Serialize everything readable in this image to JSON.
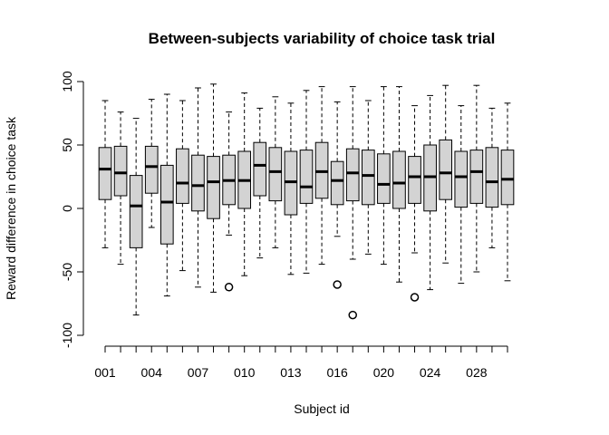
{
  "chart_data": {
    "type": "boxplot",
    "title": "Between-subjects variability of choice task trial",
    "xlabel": "Subject id",
    "ylabel": "Reward difference in choice task",
    "ylim": [
      -100,
      100
    ],
    "yticks": [
      -100,
      -50,
      0,
      50,
      100
    ],
    "x_tick_labels": [
      "001",
      "004",
      "007",
      "010",
      "013",
      "016",
      "020",
      "024",
      "028"
    ],
    "x_tick_label_positions": [
      1,
      4,
      7,
      10,
      13,
      16,
      19,
      22,
      25
    ],
    "box_fill": "#d3d3d3",
    "grid": false,
    "series": [
      {
        "whisker_low": -31,
        "q1": 7,
        "median": 31,
        "q3": 48,
        "whisker_high": 85,
        "outliers": []
      },
      {
        "whisker_low": -44,
        "q1": 10,
        "median": 28,
        "q3": 49,
        "whisker_high": 76,
        "outliers": []
      },
      {
        "whisker_low": -84,
        "q1": -31,
        "median": 2,
        "q3": 26,
        "whisker_high": 71,
        "outliers": []
      },
      {
        "whisker_low": -15,
        "q1": 12,
        "median": 33,
        "q3": 49,
        "whisker_high": 86,
        "outliers": []
      },
      {
        "whisker_low": -69,
        "q1": -28,
        "median": 5,
        "q3": 34,
        "whisker_high": 90,
        "outliers": []
      },
      {
        "whisker_low": -49,
        "q1": 4,
        "median": 20,
        "q3": 47,
        "whisker_high": 85,
        "outliers": []
      },
      {
        "whisker_low": -62,
        "q1": -2,
        "median": 18,
        "q3": 42,
        "whisker_high": 95,
        "outliers": []
      },
      {
        "whisker_low": -66,
        "q1": -8,
        "median": 21,
        "q3": 41,
        "whisker_high": 98,
        "outliers": []
      },
      {
        "whisker_low": -21,
        "q1": 3,
        "median": 22,
        "q3": 42,
        "whisker_high": 76,
        "outliers": [
          -62
        ]
      },
      {
        "whisker_low": -53,
        "q1": 0,
        "median": 22,
        "q3": 45,
        "whisker_high": 91,
        "outliers": []
      },
      {
        "whisker_low": -39,
        "q1": 10,
        "median": 34,
        "q3": 52,
        "whisker_high": 79,
        "outliers": []
      },
      {
        "whisker_low": -31,
        "q1": 6,
        "median": 29,
        "q3": 48,
        "whisker_high": 88,
        "outliers": []
      },
      {
        "whisker_low": -52,
        "q1": -5,
        "median": 21,
        "q3": 45,
        "whisker_high": 83,
        "outliers": []
      },
      {
        "whisker_low": -51,
        "q1": 4,
        "median": 17,
        "q3": 46,
        "whisker_high": 93,
        "outliers": []
      },
      {
        "whisker_low": -44,
        "q1": 8,
        "median": 29,
        "q3": 52,
        "whisker_high": 96,
        "outliers": []
      },
      {
        "whisker_low": -22,
        "q1": 3,
        "median": 22,
        "q3": 37,
        "whisker_high": 84,
        "outliers": [
          -60
        ]
      },
      {
        "whisker_low": -40,
        "q1": 6,
        "median": 28,
        "q3": 47,
        "whisker_high": 96,
        "outliers": [
          -84
        ]
      },
      {
        "whisker_low": -36,
        "q1": 3,
        "median": 26,
        "q3": 46,
        "whisker_high": 85,
        "outliers": []
      },
      {
        "whisker_low": -44,
        "q1": 4,
        "median": 19,
        "q3": 43,
        "whisker_high": 96,
        "outliers": []
      },
      {
        "whisker_low": -58,
        "q1": 0,
        "median": 20,
        "q3": 45,
        "whisker_high": 96,
        "outliers": []
      },
      {
        "whisker_low": -35,
        "q1": 4,
        "median": 25,
        "q3": 41,
        "whisker_high": 81,
        "outliers": [
          -70
        ]
      },
      {
        "whisker_low": -64,
        "q1": -2,
        "median": 25,
        "q3": 50,
        "whisker_high": 89,
        "outliers": []
      },
      {
        "whisker_low": -43,
        "q1": 7,
        "median": 28,
        "q3": 54,
        "whisker_high": 97,
        "outliers": []
      },
      {
        "whisker_low": -59,
        "q1": 1,
        "median": 25,
        "q3": 45,
        "whisker_high": 81,
        "outliers": []
      },
      {
        "whisker_low": -50,
        "q1": 4,
        "median": 29,
        "q3": 46,
        "whisker_high": 97,
        "outliers": []
      },
      {
        "whisker_low": -31,
        "q1": 1,
        "median": 21,
        "q3": 48,
        "whisker_high": 79,
        "outliers": []
      },
      {
        "whisker_low": -57,
        "q1": 3,
        "median": 23,
        "q3": 46,
        "whisker_high": 83,
        "outliers": []
      }
    ]
  }
}
